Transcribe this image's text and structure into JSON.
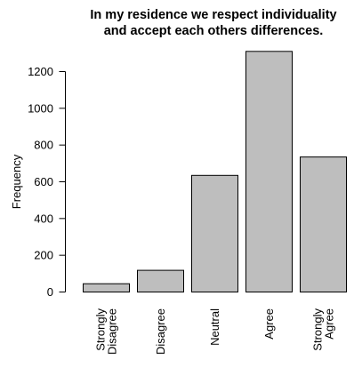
{
  "chart_data": {
    "type": "bar",
    "title_lines": [
      "In my residence we respect individuality",
      "and accept each others differences."
    ],
    "xlabel": "",
    "ylabel": "Frequency",
    "categories": [
      [
        "Strongly",
        "Disagree"
      ],
      [
        "Disagree"
      ],
      [
        "Neutral"
      ],
      [
        "Agree"
      ],
      [
        "Strongly",
        "Agree"
      ]
    ],
    "values": [
      45,
      118,
      635,
      1310,
      735
    ],
    "yticks": [
      0,
      200,
      400,
      600,
      800,
      1000,
      1200
    ],
    "ylim": [
      0,
      1310
    ],
    "grid": false,
    "bar_color": "#bebebe",
    "bar_stroke": "#000000"
  }
}
